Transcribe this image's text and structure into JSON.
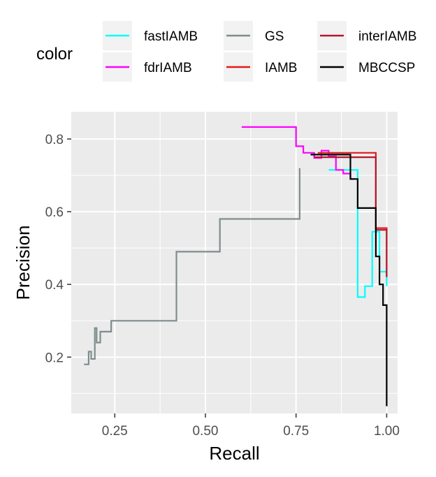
{
  "chart_data": {
    "type": "line",
    "xlabel": "Recall",
    "ylabel": "Precision",
    "xlim": [
      0.13,
      1.03
    ],
    "ylim": [
      0.045,
      0.875
    ],
    "x_ticks": [
      0.25,
      0.5,
      0.75,
      1.0
    ],
    "x_tick_labels": [
      "0.25",
      "0.50",
      "0.75",
      "1.00"
    ],
    "y_ticks": [
      0.2,
      0.4,
      0.6,
      0.8
    ],
    "y_tick_labels": [
      "0.2",
      "0.4",
      "0.6",
      "0.8"
    ],
    "grid": true,
    "legend_title": "color",
    "legend_position": "top",
    "series": [
      {
        "name": "fastIAMB",
        "color": "#00FFFF",
        "x": [
          0.84,
          0.92,
          0.92,
          0.94,
          0.94,
          0.96,
          0.96,
          0.98,
          0.98,
          1.0,
          1.0
        ],
        "y": [
          0.715,
          0.715,
          0.365,
          0.365,
          0.395,
          0.395,
          0.545,
          0.545,
          0.435,
          0.435,
          0.395
        ]
      },
      {
        "name": "fdrIAMB",
        "color": "#FF00FF",
        "x": [
          0.6,
          0.75,
          0.75,
          0.77,
          0.77,
          0.8,
          0.8,
          0.82,
          0.82,
          0.84,
          0.84,
          0.86,
          0.86,
          0.88,
          0.88,
          0.9,
          0.9,
          0.91
        ],
        "y": [
          0.833,
          0.833,
          0.78,
          0.78,
          0.762,
          0.762,
          0.748,
          0.748,
          0.768,
          0.768,
          0.752,
          0.752,
          0.715,
          0.715,
          0.705,
          0.705,
          0.69,
          0.69
        ]
      },
      {
        "name": "GS",
        "color": "#7F8C8D",
        "x": [
          0.165,
          0.178,
          0.178,
          0.185,
          0.185,
          0.195,
          0.195,
          0.2,
          0.2,
          0.21,
          0.21,
          0.24,
          0.24,
          0.42,
          0.42,
          0.54,
          0.54,
          0.76,
          0.76
        ],
        "y": [
          0.18,
          0.18,
          0.215,
          0.215,
          0.195,
          0.195,
          0.28,
          0.28,
          0.24,
          0.24,
          0.27,
          0.27,
          0.3,
          0.3,
          0.49,
          0.49,
          0.58,
          0.58,
          0.72
        ]
      },
      {
        "name": "IAMB",
        "color": "#E41A1C",
        "x": [
          0.81,
          0.97,
          0.97,
          1.0,
          1.0
        ],
        "y": [
          0.762,
          0.762,
          0.555,
          0.555,
          0.425
        ]
      },
      {
        "name": "interIAMB",
        "color": "#B2182B",
        "x": [
          0.8,
          0.97,
          0.97,
          1.0,
          1.0
        ],
        "y": [
          0.75,
          0.75,
          0.55,
          0.55,
          0.42
        ]
      },
      {
        "name": "MBCCSP",
        "color": "#000000",
        "x": [
          0.79,
          0.9,
          0.9,
          0.92,
          0.92,
          0.97,
          0.97,
          0.98,
          0.98,
          0.99,
          0.99,
          1.0,
          1.0
        ],
        "y": [
          0.757,
          0.757,
          0.69,
          0.69,
          0.61,
          0.61,
          0.477,
          0.477,
          0.4,
          0.4,
          0.343,
          0.343,
          0.065
        ]
      }
    ]
  }
}
